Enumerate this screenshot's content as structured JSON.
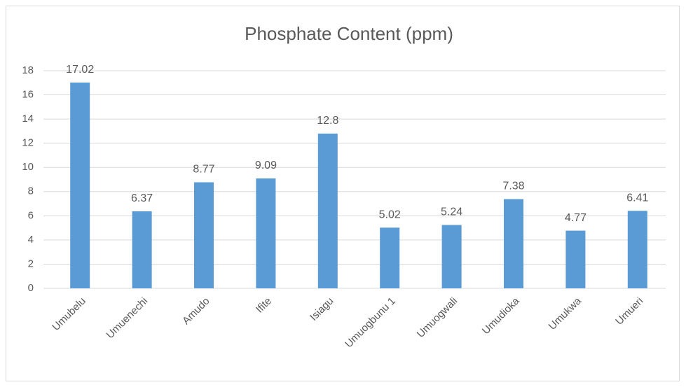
{
  "chart_data": {
    "type": "bar",
    "title": "Phosphate Content (ppm)",
    "categories": [
      "Umubelu",
      "Umuenechi",
      "Amudo",
      "Ifite",
      "Isiagu",
      "Umuogbunu 1",
      "Umuogwali",
      "Umudioka",
      "Umukwa",
      "Umueri"
    ],
    "values": [
      17.02,
      6.37,
      8.77,
      9.09,
      12.8,
      5.02,
      5.24,
      7.38,
      4.77,
      6.41
    ],
    "color": "#5b9bd5",
    "ylim": [
      0,
      18
    ],
    "yticks": [
      0,
      2,
      4,
      6,
      8,
      10,
      12,
      14,
      16,
      18
    ],
    "grid": true,
    "data_labels": true
  }
}
